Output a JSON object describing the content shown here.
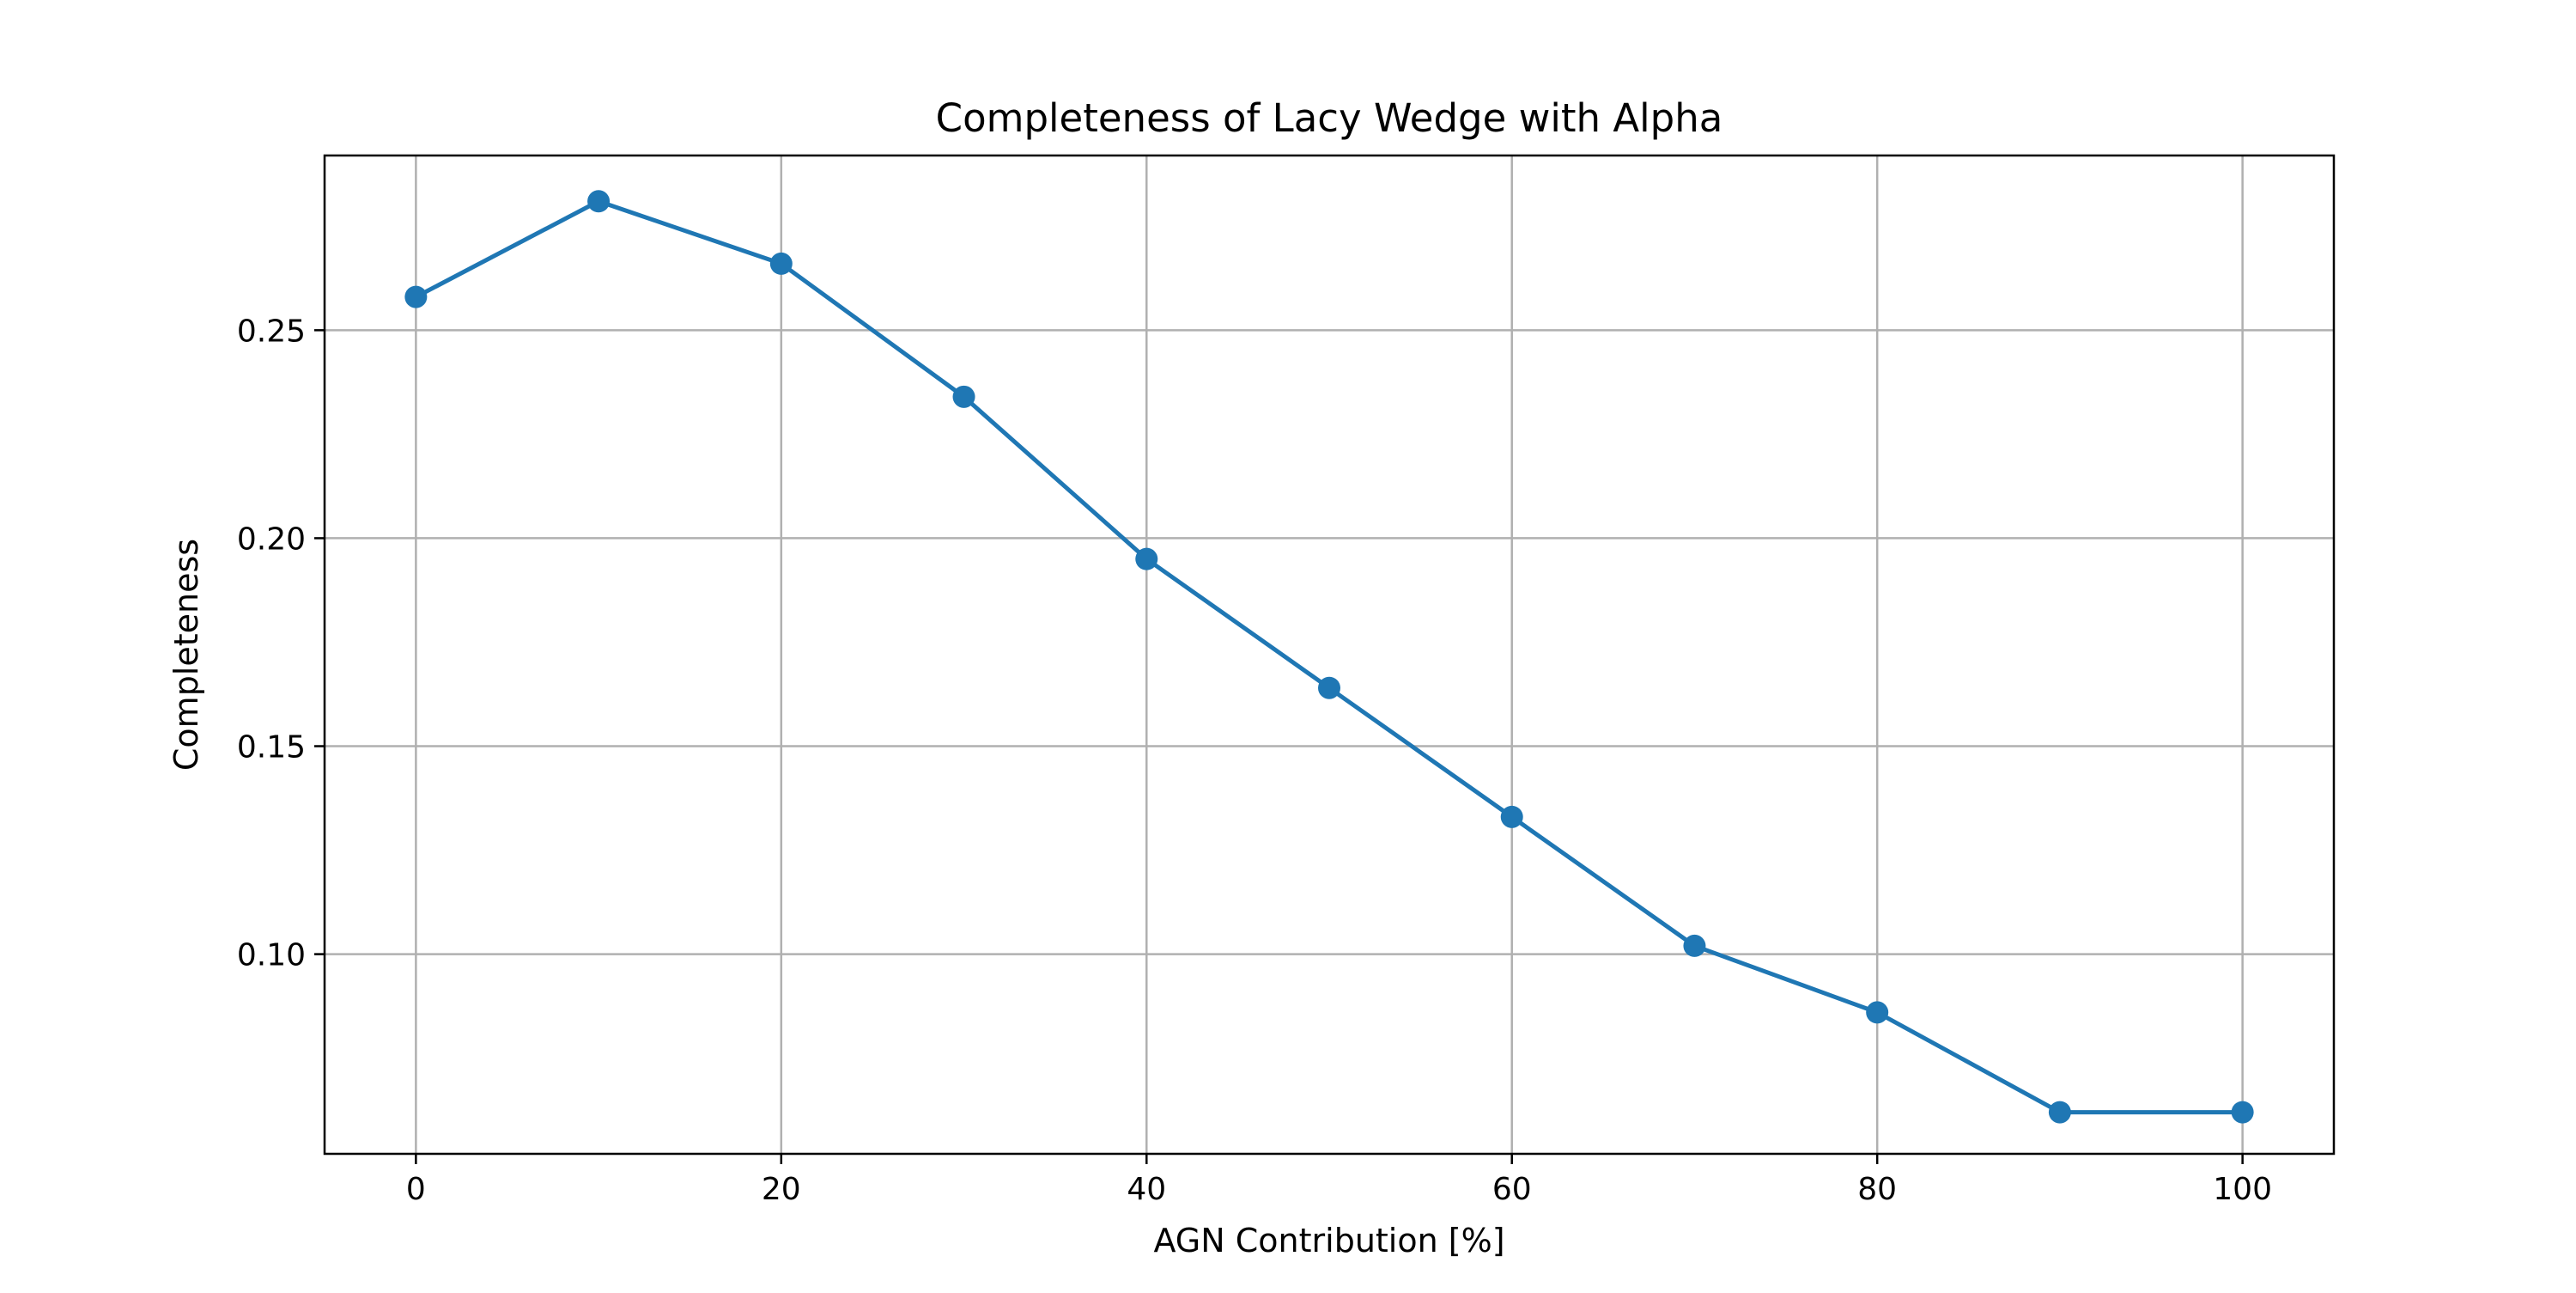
{
  "chart_data": {
    "type": "line",
    "title": "Completeness of Lacy Wedge with Alpha",
    "xlabel": "AGN Contribution [%]",
    "ylabel": "Completeness",
    "xlim": [
      -5,
      105
    ],
    "ylim": [
      0.052,
      0.292
    ],
    "x_ticks": [
      0,
      20,
      40,
      60,
      80,
      100
    ],
    "x_tick_labels": [
      "0",
      "20",
      "40",
      "60",
      "80",
      "100"
    ],
    "y_ticks": [
      0.1,
      0.15,
      0.2,
      0.25
    ],
    "y_tick_labels": [
      "0.10",
      "0.15",
      "0.20",
      "0.25"
    ],
    "grid": true,
    "color": "#1f77b4",
    "series": [
      {
        "x": [
          0,
          10,
          20,
          30,
          40,
          50,
          60,
          70,
          80,
          90,
          100
        ],
        "values": [
          0.258,
          0.281,
          0.266,
          0.234,
          0.195,
          0.164,
          0.133,
          0.102,
          0.086,
          0.062,
          0.062
        ]
      }
    ]
  }
}
